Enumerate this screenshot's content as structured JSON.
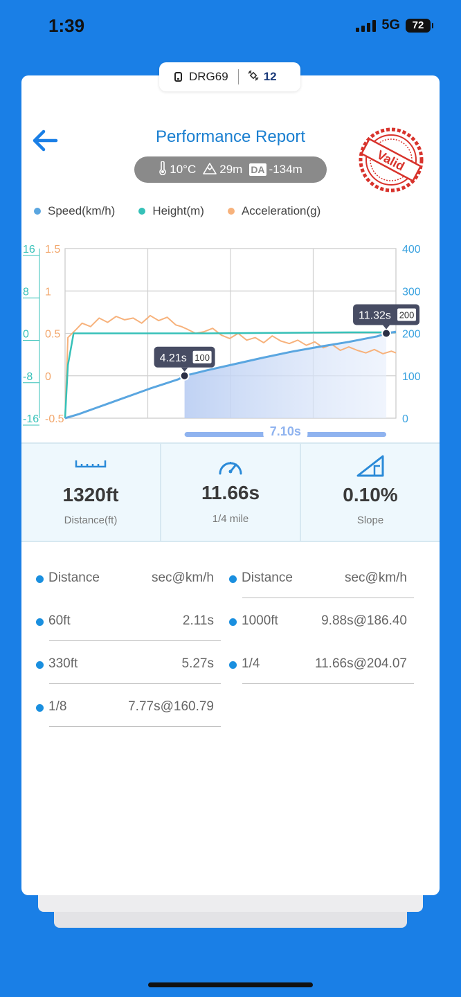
{
  "status_bar": {
    "time": "1:39",
    "network": "5G",
    "battery": "72"
  },
  "device": {
    "id": "DRG69",
    "satellites": "12"
  },
  "header": {
    "title": "Performance Report",
    "back_icon": "arrow-left-icon",
    "stamp_text": "Valid"
  },
  "conditions": {
    "temperature": "10°C",
    "altitude": "29m",
    "da_label": "DA",
    "da_value": "-134m"
  },
  "colors": {
    "speed": "#5aa6e0",
    "height": "#36c1b8",
    "acceleration": "#f7b27c",
    "accent": "#1a7fe6",
    "stamp": "#d8332c"
  },
  "legend": [
    {
      "label": "Speed(km/h)",
      "color": "#5aa6e0"
    },
    {
      "label": "Height(m)",
      "color": "#36c1b8"
    },
    {
      "label": "Acceleration(g)",
      "color": "#f7b27c"
    }
  ],
  "chart_data": {
    "type": "line",
    "axes": {
      "height_ticks": [
        "16",
        "8",
        "0",
        "-8",
        "-16"
      ],
      "acceleration_ticks": [
        "1.5",
        "1",
        "0.5",
        "0",
        "-0.5"
      ],
      "speed_ticks": [
        "400",
        "300",
        "200",
        "100",
        "0"
      ],
      "speed_range": [
        0,
        400
      ],
      "height_range": [
        -16,
        16
      ],
      "acceleration_range": [
        -0.5,
        1.5
      ]
    },
    "x_range_s": [
      0,
      11.66
    ],
    "speed_series": {
      "name": "Speed(km/h)",
      "x": [
        0,
        0.5,
        1,
        1.5,
        2,
        2.5,
        3,
        3.5,
        4,
        4.21,
        5,
        6,
        7,
        8,
        9,
        10,
        11,
        11.32,
        11.66
      ],
      "y": [
        0,
        10,
        22,
        34,
        46,
        58,
        70,
        81,
        92,
        100,
        113,
        128,
        143,
        157,
        169,
        180,
        193,
        200,
        204
      ]
    },
    "height_series": {
      "name": "Height(m)",
      "x": [
        0,
        0.1,
        0.3,
        5,
        10,
        11.66
      ],
      "y": [
        -16,
        -6,
        0,
        0,
        0.2,
        0.2
      ]
    },
    "acceleration_series": {
      "name": "Acceleration(g)",
      "x": [
        0,
        0.1,
        0.4,
        0.6,
        0.9,
        1.2,
        1.5,
        1.8,
        2.1,
        2.4,
        2.7,
        3.0,
        3.3,
        3.6,
        3.9,
        4.1,
        4.3,
        4.6,
        4.9,
        5.2,
        5.5,
        5.8,
        6.1,
        6.4,
        6.7,
        7.0,
        7.3,
        7.6,
        7.9,
        8.2,
        8.5,
        8.8,
        9.1,
        9.4,
        9.7,
        10.0,
        10.3,
        10.6,
        10.9,
        11.2,
        11.5,
        11.66
      ],
      "y": [
        -0.5,
        0.45,
        0.55,
        0.62,
        0.58,
        0.68,
        0.63,
        0.7,
        0.66,
        0.68,
        0.62,
        0.71,
        0.65,
        0.69,
        0.6,
        0.58,
        0.55,
        0.5,
        0.52,
        0.56,
        0.48,
        0.44,
        0.5,
        0.42,
        0.45,
        0.39,
        0.47,
        0.41,
        0.38,
        0.42,
        0.36,
        0.4,
        0.33,
        0.37,
        0.3,
        0.34,
        0.3,
        0.27,
        0.31,
        0.26,
        0.29,
        0.27
      ]
    },
    "markers": [
      {
        "x": 4.21,
        "y": 100,
        "time_label": "4.21s",
        "speed_label": "100"
      },
      {
        "x": 11.32,
        "y": 200,
        "time_label": "11.32s",
        "speed_label": "200"
      }
    ],
    "interval_label": "7.10s"
  },
  "stats": [
    {
      "icon": "ruler-icon",
      "value": "1320ft",
      "label": "Distance(ft)"
    },
    {
      "icon": "speedometer-icon",
      "value": "11.66s",
      "label": "1/4 mile"
    },
    {
      "icon": "slope-icon",
      "value": "0.10%",
      "label": "Slope"
    }
  ],
  "splits": {
    "headers": [
      {
        "label": "Distance",
        "value": "sec@km/h"
      },
      {
        "label": "Distance",
        "value": "sec@km/h"
      }
    ],
    "rows": [
      {
        "label": "60ft",
        "value": "2.11s"
      },
      {
        "label": "1000ft",
        "value": "9.88s@186.40"
      },
      {
        "label": "330ft",
        "value": "5.27s"
      },
      {
        "label": "1/4",
        "value": "11.66s@204.07"
      },
      {
        "label": "1/8",
        "value": "7.77s@160.79"
      }
    ]
  }
}
